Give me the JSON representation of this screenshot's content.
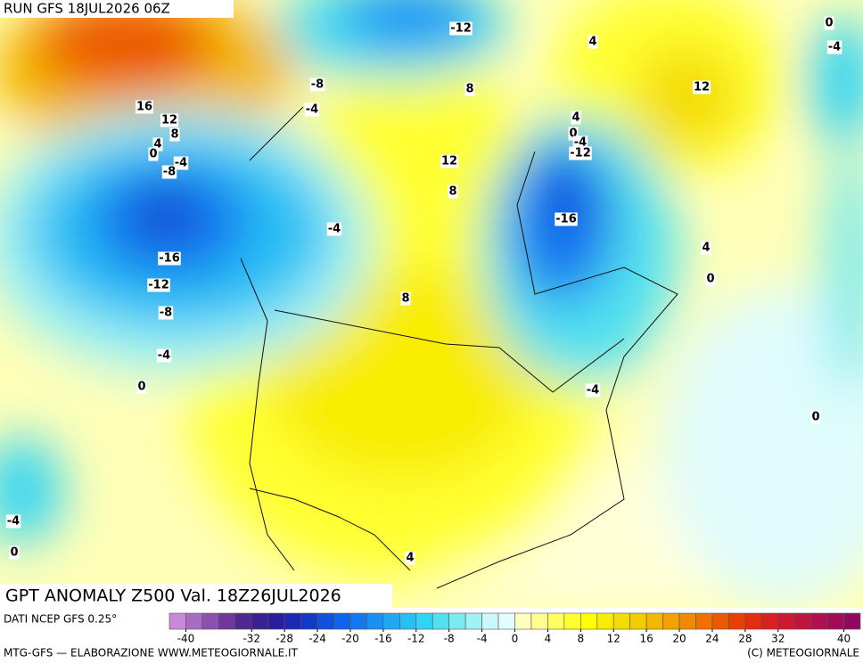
{
  "header": {
    "run": "RUN GFS 18JUL2026 06Z",
    "title": "GPT ANOMALY Z500 Val. 18Z26JUL2026"
  },
  "footer": {
    "source": "DATI NCEP GFS 0.25°",
    "credit": "MTG-GFS — ELABORAZIONE WWW.METEOGIORNALE.IT",
    "copyright": "(C) METEOGIORNALE"
  },
  "colorbar": {
    "range": [
      -42,
      42
    ],
    "colors": [
      "#c88ad8",
      "#a86cc4",
      "#8c50b0",
      "#70389c",
      "#502890",
      "#3a2090",
      "#2a1ea0",
      "#1e28b4",
      "#1438c8",
      "#1050dc",
      "#1064ec",
      "#1478f0",
      "#1890f4",
      "#20a8f4",
      "#28c0f4",
      "#30d4f4",
      "#50e0f0",
      "#78eaf0",
      "#a0f2f4",
      "#c8f8f8",
      "#e4fcfc",
      "#ffffc0",
      "#ffff90",
      "#ffff60",
      "#ffff30",
      "#ffff00",
      "#f8ec00",
      "#f4dc00",
      "#f0cc00",
      "#f4b800",
      "#f4a000",
      "#f08800",
      "#f07000",
      "#ec5800",
      "#e84000",
      "#e42c10",
      "#d82020",
      "#cc1830",
      "#c01440",
      "#b01050",
      "#a00c58",
      "#900860"
    ],
    "ticks": [
      -40,
      -32,
      -28,
      -24,
      -20,
      -16,
      -12,
      -8,
      -4,
      0,
      4,
      8,
      12,
      16,
      20,
      24,
      28,
      32,
      40
    ]
  },
  "contour_labels": [
    -12,
    4,
    0,
    -4,
    12,
    -8,
    8,
    -4,
    16,
    12,
    8,
    4,
    0,
    4,
    0,
    -4,
    -12,
    -4,
    -8,
    12,
    8,
    -16,
    -4,
    4,
    -16,
    0,
    -12,
    8,
    -8,
    -4,
    0,
    -4,
    0,
    -4,
    0,
    4
  ]
}
